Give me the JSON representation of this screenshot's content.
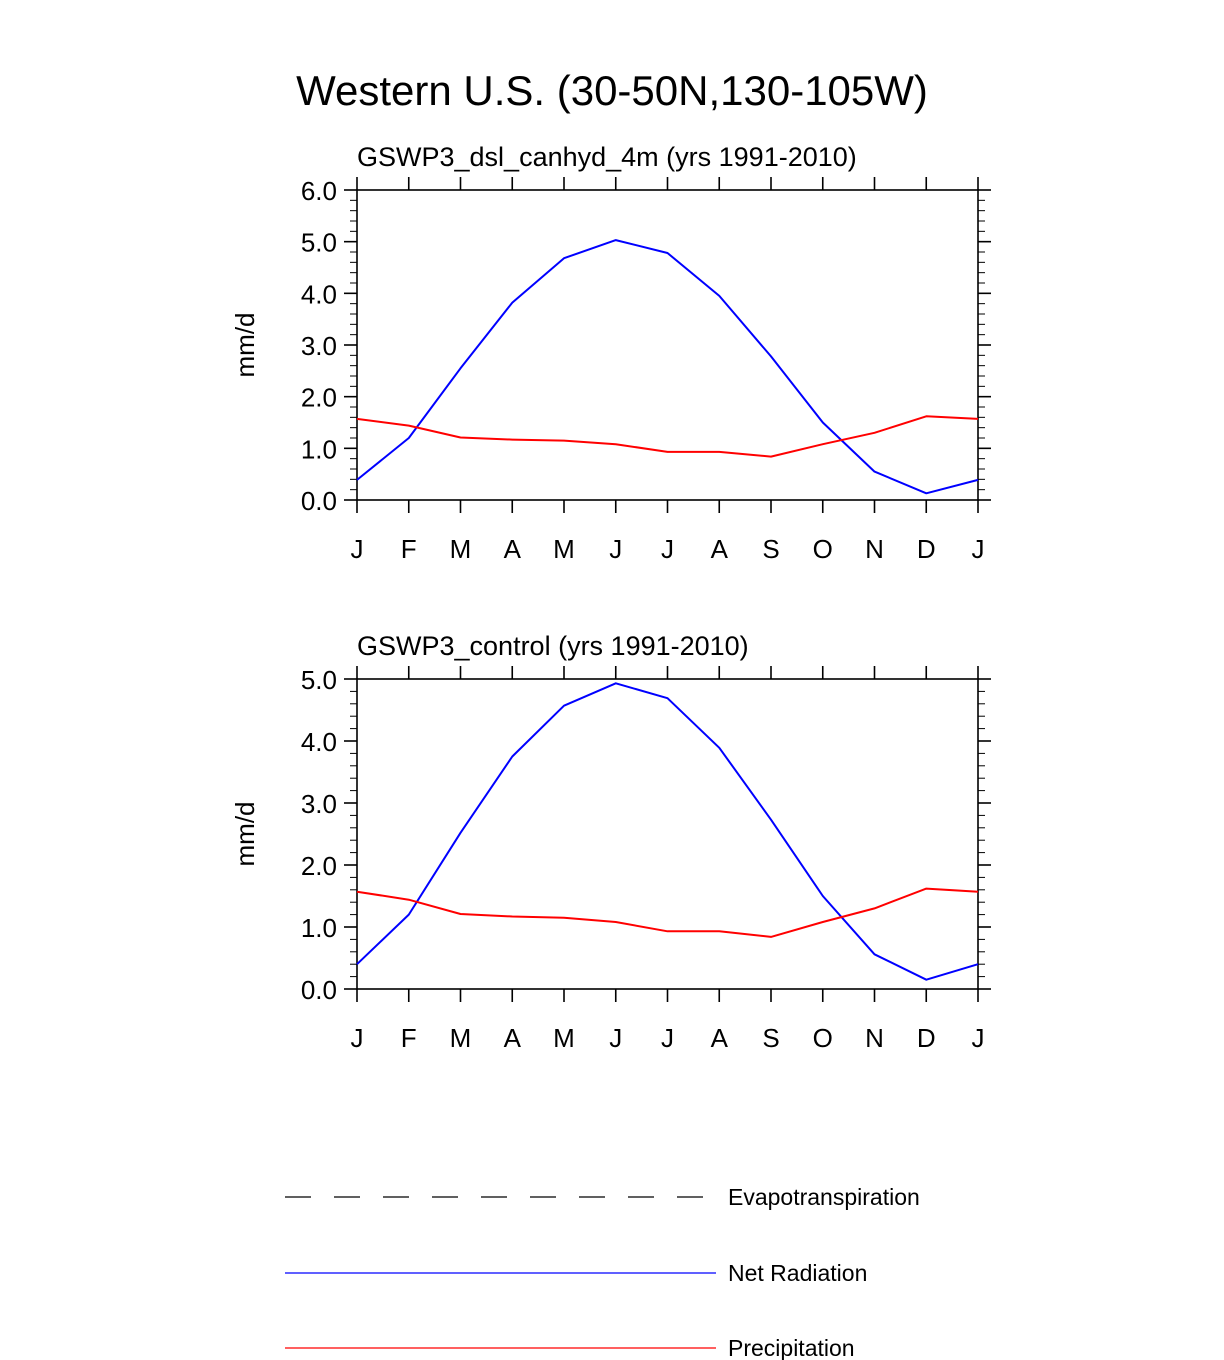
{
  "main_title": "Western U.S. (30-50N,130-105W)",
  "colors": {
    "net_radiation": "#0000ff",
    "precipitation": "#ff0000",
    "evapotranspiration": "#000000"
  },
  "chart_data": [
    {
      "type": "line",
      "title": "GSWP3_dsl_canhyd_4m (yrs 1991-2010)",
      "ylabel": "mm/d",
      "xlabel": "",
      "categories": [
        "J",
        "F",
        "M",
        "A",
        "M",
        "J",
        "J",
        "A",
        "S",
        "O",
        "N",
        "D",
        "J"
      ],
      "ylim": [
        0,
        6
      ],
      "yticks": [
        "0.0",
        "1.0",
        "2.0",
        "3.0",
        "4.0",
        "5.0",
        "6.0"
      ],
      "series": [
        {
          "name": "Net Radiation",
          "values": [
            0.39,
            1.2,
            2.55,
            3.82,
            4.68,
            5.03,
            4.78,
            3.95,
            2.78,
            1.5,
            0.55,
            0.13,
            0.39
          ]
        },
        {
          "name": "Precipitation",
          "values": [
            1.57,
            1.44,
            1.21,
            1.17,
            1.15,
            1.08,
            0.93,
            0.93,
            0.84,
            1.08,
            1.3,
            1.62,
            1.57
          ]
        }
      ]
    },
    {
      "type": "line",
      "title": "GSWP3_control (yrs 1991-2010)",
      "ylabel": "mm/d",
      "xlabel": "",
      "categories": [
        "J",
        "F",
        "M",
        "A",
        "M",
        "J",
        "J",
        "A",
        "S",
        "O",
        "N",
        "D",
        "J"
      ],
      "ylim": [
        0,
        5
      ],
      "yticks": [
        "0.0",
        "1.0",
        "2.0",
        "3.0",
        "4.0",
        "5.0"
      ],
      "series": [
        {
          "name": "Net Radiation",
          "values": [
            0.4,
            1.2,
            2.52,
            3.75,
            4.57,
            4.93,
            4.69,
            3.89,
            2.73,
            1.5,
            0.56,
            0.15,
            0.4
          ]
        },
        {
          "name": "Precipitation",
          "values": [
            1.57,
            1.44,
            1.21,
            1.17,
            1.15,
            1.08,
            0.93,
            0.93,
            0.84,
            1.08,
            1.3,
            1.62,
            1.57
          ]
        }
      ]
    }
  ],
  "legend": [
    {
      "label": "Evapotranspiration",
      "style": "dashed",
      "color": "#000000"
    },
    {
      "label": "Net Radiation",
      "style": "solid",
      "color": "#0000ff"
    },
    {
      "label": "Precipitation",
      "style": "solid",
      "color": "#ff0000"
    }
  ]
}
